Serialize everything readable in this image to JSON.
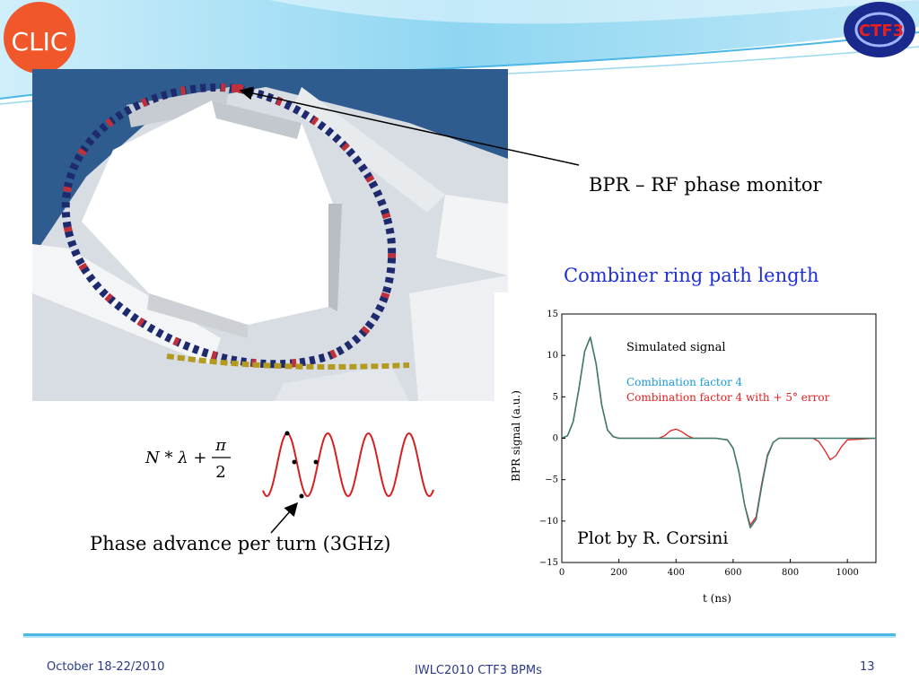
{
  "logos": {
    "left": "CLIC",
    "right": "CTF3"
  },
  "labels": {
    "bpr": "BPR – RF phase monitor",
    "combiner_title": "Combiner ring path length",
    "phase_advance": "Phase advance per turn (3GHz)",
    "formula_lhs": "N * λ +",
    "formula_num": "π",
    "formula_den": "2"
  },
  "footer": {
    "date": "October  18-22/2010",
    "center": "IWLC2010   CTF3 BPMs",
    "page": "13"
  },
  "colors": {
    "title_blue": "#1f2fd6",
    "sim_signal": "#3e7b6f",
    "factor4": "#1a9ad6",
    "error": "#e02020",
    "sine": "#d42020"
  },
  "chart_data": {
    "type": "line",
    "xlabel": "t (ns)",
    "ylabel": "BPR signal (a.u.)",
    "xlim": [
      0,
      1100
    ],
    "ylim": [
      -15,
      15
    ],
    "xticks": [
      "0",
      "200",
      "400",
      "600",
      "800",
      "1000"
    ],
    "yticks": [
      "15",
      "10",
      "5",
      "0",
      "−5",
      "−10",
      "−15"
    ],
    "annotation": "Plot by R. Corsini",
    "legend": [
      {
        "text": "Simulated signal",
        "color": "#000000"
      },
      {
        "text": "Combination factor 4",
        "color": "#1a9ad6"
      },
      {
        "text": "Combination factor 4 with + 5° error",
        "color": "#e02020"
      }
    ],
    "series": [
      {
        "color": "#e02020",
        "x": [
          0,
          20,
          40,
          60,
          80,
          100,
          120,
          140,
          160,
          180,
          200,
          300,
          340,
          360,
          380,
          400,
          420,
          440,
          460,
          500,
          540,
          580,
          600,
          620,
          640,
          660,
          680,
          700,
          720,
          740,
          760,
          860,
          880,
          900,
          920,
          940,
          960,
          980,
          1000,
          1100
        ],
        "y": [
          0,
          0.3,
          2,
          6,
          10.5,
          12.2,
          9,
          4,
          1,
          0.2,
          0,
          0,
          0,
          0.3,
          0.9,
          1.1,
          0.8,
          0.3,
          0,
          0,
          0,
          -0.2,
          -1.2,
          -4,
          -8,
          -10.5,
          -9.5,
          -5.5,
          -2,
          -0.5,
          0,
          0,
          0,
          -0.4,
          -1.4,
          -2.6,
          -2.1,
          -1,
          -0.2,
          0
        ]
      },
      {
        "color": "#3e7b6f",
        "x": [
          0,
          20,
          40,
          60,
          80,
          100,
          120,
          140,
          160,
          180,
          200,
          300,
          400,
          500,
          540,
          580,
          600,
          620,
          640,
          660,
          680,
          700,
          720,
          740,
          760,
          860,
          960,
          1100
        ],
        "y": [
          0,
          0.3,
          2,
          6,
          10.5,
          12.2,
          9,
          4,
          1,
          0.2,
          0,
          0,
          0,
          0,
          0,
          -0.2,
          -1.2,
          -4,
          -8,
          -10.8,
          -9.8,
          -5.8,
          -2.2,
          -0.5,
          0,
          0,
          0,
          0
        ]
      }
    ]
  }
}
